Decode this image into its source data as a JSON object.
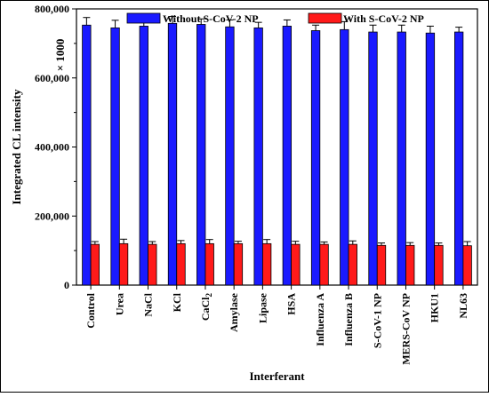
{
  "chart_data": {
    "type": "bar",
    "xlabel": "Interferant",
    "ylabel": "Integrated CL intensity",
    "ylim": [
      0,
      800000
    ],
    "yticks": [
      "0",
      "200,000",
      "400,000",
      "600,000",
      "800,000"
    ],
    "ytick_values": [
      0,
      200000,
      400000,
      600000,
      800000
    ],
    "scale_note": "× 1000",
    "grid": false,
    "legend": {
      "placement": "top"
    },
    "categories": [
      "Control",
      "Urea",
      "NaCl",
      "KCl",
      "CaCl2",
      "Amylase",
      "Lipase",
      "HSA",
      "Influenza A",
      "Influenza B",
      "S-CoV-1 NP",
      "MERS-CoV NP",
      "HKU1",
      "NL63"
    ],
    "series": [
      {
        "name": "Without S-CoV-2 NP",
        "color": "#1a1aff",
        "values": [
          753000,
          745000,
          750000,
          758000,
          755000,
          748000,
          745000,
          750000,
          737000,
          740000,
          733000,
          733000,
          730000,
          733000
        ],
        "errors": [
          22000,
          22000,
          28000,
          20000,
          16000,
          20000,
          16000,
          18000,
          16000,
          23000,
          20000,
          20000,
          20000,
          14000
        ]
      },
      {
        "name": "With S-CoV-2 NP",
        "color": "#ff1a1a",
        "values": [
          118000,
          120000,
          118000,
          120000,
          120000,
          120000,
          120000,
          118000,
          118000,
          118000,
          115000,
          115000,
          115000,
          114000
        ],
        "errors": [
          8000,
          13000,
          8000,
          9000,
          12000,
          7000,
          12000,
          9000,
          7000,
          10000,
          7000,
          8000,
          7000,
          12000
        ]
      }
    ]
  }
}
